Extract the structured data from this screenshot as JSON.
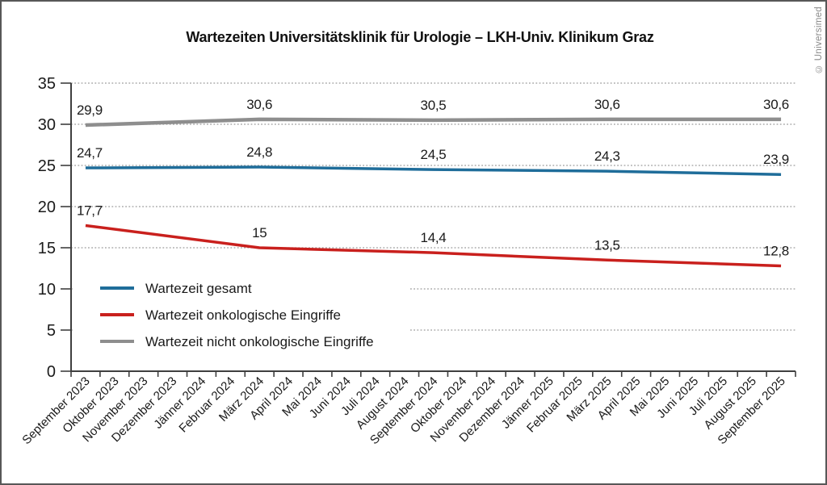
{
  "copyright": "© Universimed",
  "chart_data": {
    "type": "line",
    "title": "Wartezeiten Universitätsklinik für Urologie – LKH-Univ. Klinikum Graz",
    "x_categories": [
      "September 2023",
      "Oktober 2023",
      "November 2023",
      "Dezember 2023",
      "Jänner 2024",
      "Februar 2024",
      "März 2024",
      "April 2024",
      "Mai 2024",
      "Juni 2024",
      "Juli 2024",
      "August 2024",
      "September 2024",
      "Oktober 2024",
      "November 2024",
      "Dezember 2024",
      "Jänner 2025",
      "Februar 2025",
      "März 2025",
      "April 2025",
      "Mai 2025",
      "Juni 2025",
      "Juli 2025",
      "August 2025",
      "September 2025"
    ],
    "labeled_indices": [
      0,
      6,
      12,
      18,
      24
    ],
    "series": [
      {
        "name": "Wartezeit gesamt",
        "color": "#1f6d9a",
        "values": [
          24.7,
          24.8,
          24.5,
          24.3,
          23.9
        ],
        "value_labels": [
          "24,7",
          "24,8",
          "24,5",
          "24,3",
          "23,9"
        ]
      },
      {
        "name": "Wartezeit onkologische Eingriffe",
        "color": "#c9201d",
        "values": [
          17.7,
          15,
          14.4,
          13.5,
          12.8
        ],
        "value_labels": [
          "17,7",
          "15",
          "14,4",
          "13,5",
          "12,8"
        ]
      },
      {
        "name": "Wartezeit nicht onkologische Eingriffe",
        "color": "#8e8e8e",
        "values": [
          29.9,
          30.6,
          30.5,
          30.6,
          30.6
        ],
        "value_labels": [
          "29,9",
          "30,6",
          "30,5",
          "30,6",
          "30,6"
        ]
      }
    ],
    "ylim": [
      0,
      35
    ],
    "yticks": [
      0,
      5,
      10,
      15,
      20,
      25,
      30,
      35
    ],
    "grid": "dotted-horizontal",
    "grid_color": "#9a9a9a",
    "axis_color": "#3f3f3f",
    "text_color": "#1a1a1a",
    "legend_position": "inside-bottom-left"
  }
}
